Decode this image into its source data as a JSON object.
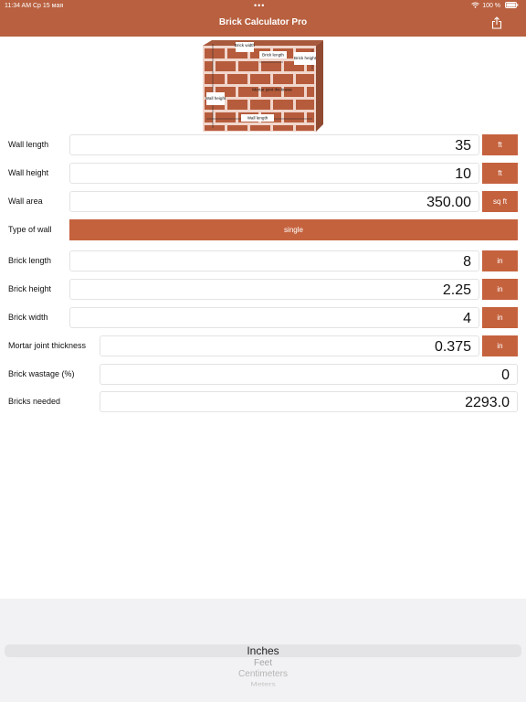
{
  "status_bar": {
    "time_date": "11:34 AM  Ср 15 мая",
    "dots": "•••",
    "battery": "100 %"
  },
  "header": {
    "title": "Brick Calculator Pro"
  },
  "diagram": {
    "brick_width": "Brick width",
    "brick_length": "Brick length",
    "brick_height": "Brick height",
    "wall_height": "Wall height",
    "wall_length": "Wall length",
    "mortar": "Mortar joint thickness"
  },
  "form": {
    "wall_length": {
      "label": "Wall length",
      "value": "35",
      "unit": "ft"
    },
    "wall_height": {
      "label": "Wall height",
      "value": "10",
      "unit": "ft"
    },
    "wall_area": {
      "label": "Wall area",
      "value": "350.00",
      "unit": "sq ft"
    },
    "type_of_wall": {
      "label": "Type of wall",
      "value": "single"
    },
    "brick_length": {
      "label": "Brick length",
      "value": "8",
      "unit": "in"
    },
    "brick_height": {
      "label": "Brick height",
      "value": "2.25",
      "unit": "in"
    },
    "brick_width": {
      "label": "Brick width",
      "value": "4",
      "unit": "in"
    },
    "mortar": {
      "label": "Mortar joint thickness",
      "value": "0.375",
      "unit": "in"
    },
    "wastage": {
      "label": "Brick wastage (%)",
      "value": "0"
    },
    "bricks_needed": {
      "label": "Bricks needed",
      "value": "2293.0"
    }
  },
  "picker": {
    "options": [
      "Inches",
      "Feet",
      "Centimeters",
      "Meters"
    ],
    "selected": "Inches"
  },
  "colors": {
    "header": "#b8603f",
    "accent": "#c5623e"
  }
}
